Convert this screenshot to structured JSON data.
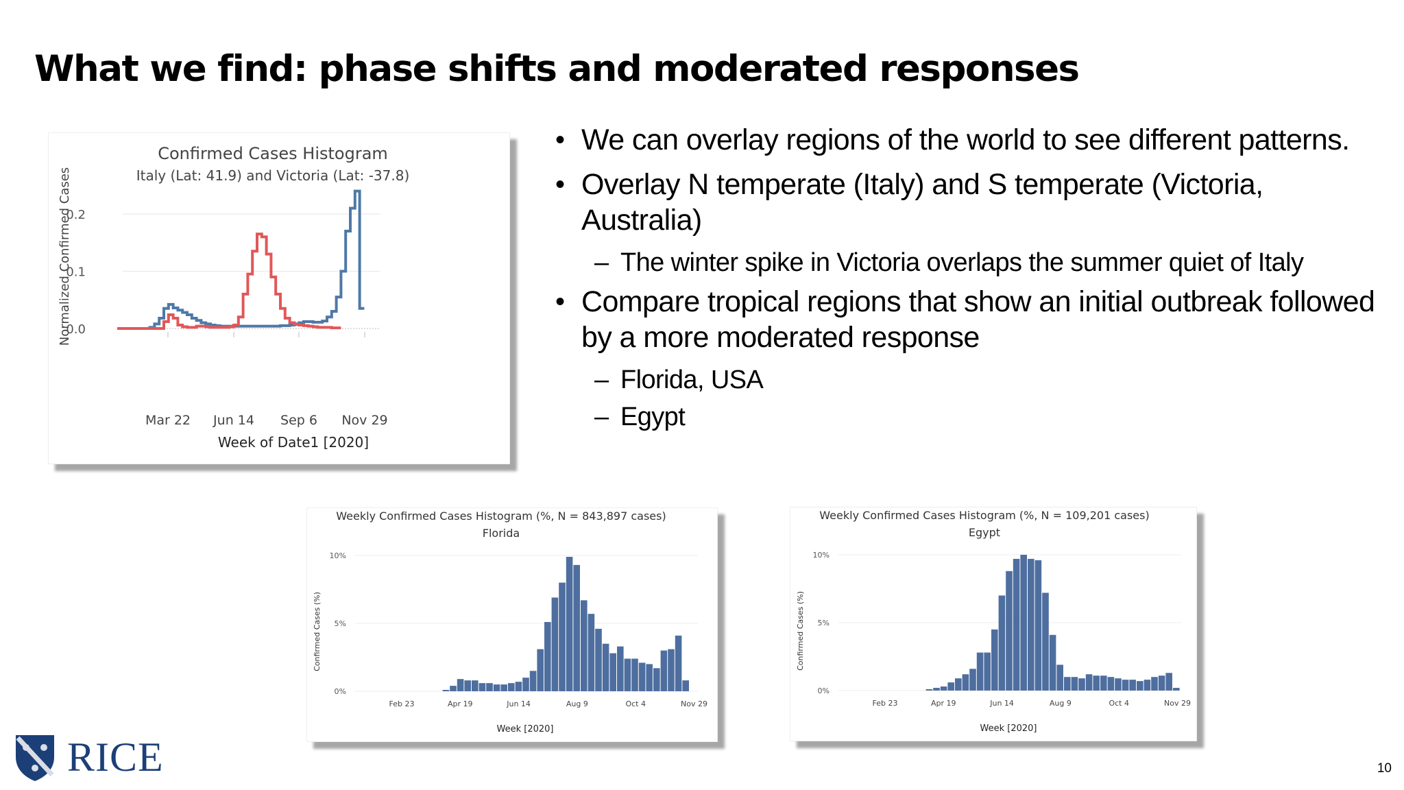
{
  "slide": {
    "title": "What we find: phase shifts and moderated responses",
    "page_number": "10",
    "logo_text": "RICE"
  },
  "bullets": [
    {
      "level": 1,
      "text": "We can overlay regions of the world to see different patterns."
    },
    {
      "level": 1,
      "text": "Overlay N temperate (Italy) and S temperate  (Victoria, Australia)"
    },
    {
      "level": 2,
      "text": "The winter spike in  Victoria overlaps the summer quiet of Italy"
    },
    {
      "level": 1,
      "text": "Compare tropical regions that show an initial outbreak followed by a more moderated response"
    },
    {
      "level": 2,
      "text": "Florida, USA"
    },
    {
      "level": 2,
      "text": "Egypt"
    }
  ],
  "chart_data": [
    {
      "type": "line",
      "title": "Confirmed Cases Histogram",
      "subtitle": "Italy (Lat: 41.9) and Victoria (Lat: -37.8)",
      "xlabel": "Week of Date1 [2020]",
      "ylabel": "Normalized Confirmed Cases",
      "x_ticks": [
        "Mar 22",
        "Jun 14",
        "Sep 6",
        "Nov 29"
      ],
      "y_ticks": [
        "0.0",
        "0.1",
        "0.2"
      ],
      "ylim": [
        0,
        0.24
      ],
      "grid": true,
      "series": [
        {
          "color": "#4e79a7",
          "values": [
            0,
            0,
            0,
            0,
            0,
            0,
            0,
            0.002,
            0.008,
            0.018,
            0.035,
            0.042,
            0.036,
            0.032,
            0.028,
            0.024,
            0.018,
            0.014,
            0.01,
            0.008,
            0.006,
            0.005,
            0.004,
            0.004,
            0.004,
            0.004,
            0.004,
            0.004,
            0.004,
            0.004,
            0.004,
            0.004,
            0.004,
            0.004,
            0.004,
            0.005,
            0.005,
            0.006,
            0.008,
            0.01,
            0.012,
            0.012,
            0.011,
            0.011,
            0.013,
            0.02,
            0.03,
            0.055,
            0.1,
            0.17,
            0.21,
            0.24,
            0.035
          ]
        },
        {
          "color": "#e15759",
          "values": [
            0,
            0,
            0,
            0,
            0,
            0,
            0,
            0,
            0,
            0,
            0.012,
            0.024,
            0.018,
            0.006,
            0.003,
            0.002,
            0.002,
            0.004,
            0.004,
            0.003,
            0.002,
            0.002,
            0.002,
            0.002,
            0.003,
            0.006,
            0.02,
            0.06,
            0.095,
            0.135,
            0.165,
            0.16,
            0.13,
            0.09,
            0.06,
            0.035,
            0.018,
            0.01,
            0.007,
            0.006,
            0.005,
            0.004,
            0.003,
            0.002,
            0.002,
            0.002,
            0.001,
            0.001
          ]
        }
      ]
    },
    {
      "type": "bar",
      "title": "Weekly Confirmed Cases Histogram (%, N = 843,897 cases)",
      "subtitle": "Florida",
      "xlabel": "Week [2020]",
      "ylabel": "Confirmed Cases (%)",
      "x_ticks": [
        "Feb 23",
        "Apr 19",
        "Jun 14",
        "Aug 9",
        "Oct 4",
        "Nov 29"
      ],
      "y_ticks": [
        "0%",
        "5%",
        "10%"
      ],
      "ylim": [
        0,
        10.5
      ],
      "grid": true,
      "values": [
        0,
        0,
        0,
        0,
        0,
        0,
        0.1,
        0.4,
        0.9,
        0.8,
        0.8,
        0.6,
        0.6,
        0.5,
        0.5,
        0.6,
        0.7,
        1.0,
        1.5,
        3.1,
        5.1,
        6.9,
        8.0,
        9.9,
        9.3,
        6.7,
        5.7,
        4.6,
        3.5,
        2.8,
        3.3,
        2.4,
        2.4,
        2.1,
        2.0,
        1.7,
        3.0,
        3.1,
        4.1,
        0.8
      ]
    },
    {
      "type": "bar",
      "title": "Weekly Confirmed Cases Histogram (%, N = 109,201 cases)",
      "subtitle": "Egypt",
      "xlabel": "Week [2020]",
      "ylabel": "Confirmed Cases (%)",
      "x_ticks": [
        "Feb 23",
        "Apr 19",
        "Jun 14",
        "Aug 9",
        "Oct 4",
        "Nov 29"
      ],
      "y_ticks": [
        "0%",
        "5%",
        "10%"
      ],
      "ylim": [
        0,
        10.5
      ],
      "grid": true,
      "values": [
        0,
        0,
        0,
        0,
        0,
        0,
        0.1,
        0.2,
        0.3,
        0.6,
        0.9,
        1.2,
        1.6,
        2.8,
        2.8,
        4.5,
        7.0,
        8.8,
        9.7,
        10.0,
        9.7,
        9.6,
        7.2,
        4.1,
        1.9,
        1.0,
        1.0,
        0.9,
        1.2,
        1.1,
        1.1,
        1.0,
        0.9,
        0.8,
        0.8,
        0.7,
        0.8,
        1.0,
        1.1,
        1.3,
        0.2
      ]
    }
  ]
}
